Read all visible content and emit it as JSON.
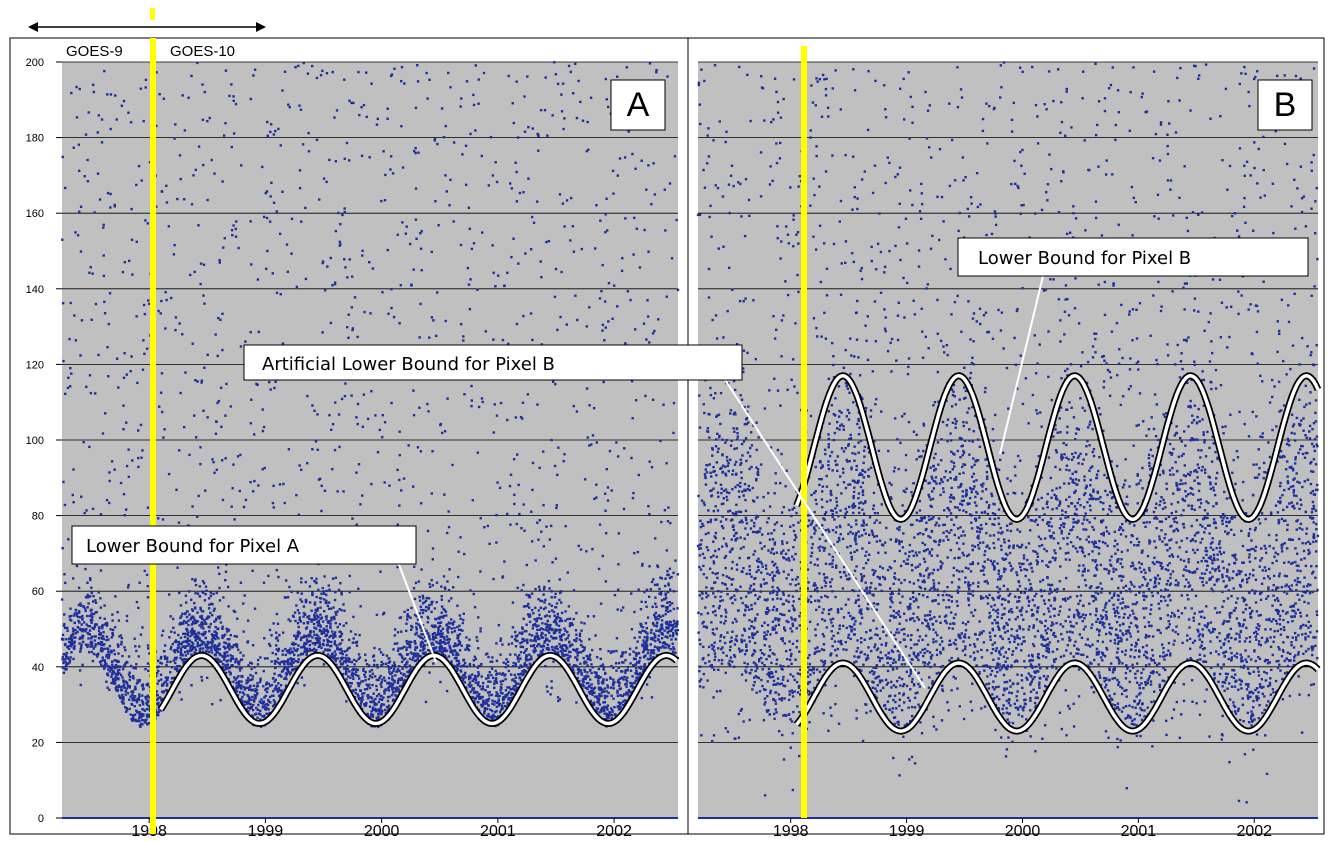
{
  "chart_data": [
    {
      "type": "scatter",
      "panel": "A",
      "title": "",
      "xlabel": "",
      "ylabel": "",
      "ylim": [
        0,
        200
      ],
      "yticks": [
        0,
        20,
        40,
        60,
        80,
        100,
        120,
        140,
        160,
        180,
        200
      ],
      "xlim": [
        1997.25,
        2002.55
      ],
      "xticks": [
        "1998",
        "1999",
        "2000",
        "2001",
        "2002"
      ],
      "grid": "horizontal",
      "point_color": "#1f2f9a",
      "background_color": "#c0c0c0",
      "marker_year": 1998.08,
      "satellite_labels": [
        "GOES-9",
        "GOES-10"
      ],
      "lower_bound_curves": [
        {
          "label": "Lower Bound for Pixel A",
          "center": 34,
          "amplitude": 9,
          "peak_phase": 0.45,
          "x_start": 1998.1,
          "x_end": 2002.55
        }
      ],
      "scatter_density": {
        "baseline_center": 42,
        "baseline_amplitude": 10,
        "baseline_peak_phase": 0.45,
        "x_gap_start": 1998.0,
        "x_gap_end": 1998.15
      }
    },
    {
      "type": "scatter",
      "panel": "B",
      "title": "",
      "xlabel": "",
      "ylabel": "",
      "ylim": [
        0,
        200
      ],
      "yticks": [
        0,
        20,
        40,
        60,
        80,
        100,
        120,
        140,
        160,
        180,
        200
      ],
      "xlim": [
        1997.2,
        2002.55
      ],
      "xticks": [
        "1998",
        "1999",
        "2000",
        "2001",
        "2002"
      ],
      "grid": "horizontal",
      "point_color": "#1f2f9a",
      "background_color": "#c0c0c0",
      "marker_year": 1998.05,
      "lower_bound_curves": [
        {
          "label": "Lower Bound for Pixel B",
          "center": 98,
          "amplitude": 19,
          "peak_phase": 0.45,
          "x_start": 1998.05,
          "x_end": 2002.55
        },
        {
          "label": "Artificial Lower Bound for Pixel B",
          "center": 32,
          "amplitude": 9,
          "peak_phase": 0.45,
          "x_start": 1998.05,
          "x_end": 2002.55
        }
      ]
    }
  ],
  "labels": {
    "panel_a": "A",
    "panel_b": "B",
    "goes9": "GOES-9",
    "goes10": "GOES-10",
    "callout_a": "Lower Bound for Pixel A",
    "callout_b": "Lower Bound for Pixel B",
    "callout_artificial": "Artificial Lower Bound for Pixel B"
  },
  "colors": {
    "marker_line": "#ffff00",
    "curve_outline": "#000000",
    "curve_fill": "#ffffff"
  }
}
